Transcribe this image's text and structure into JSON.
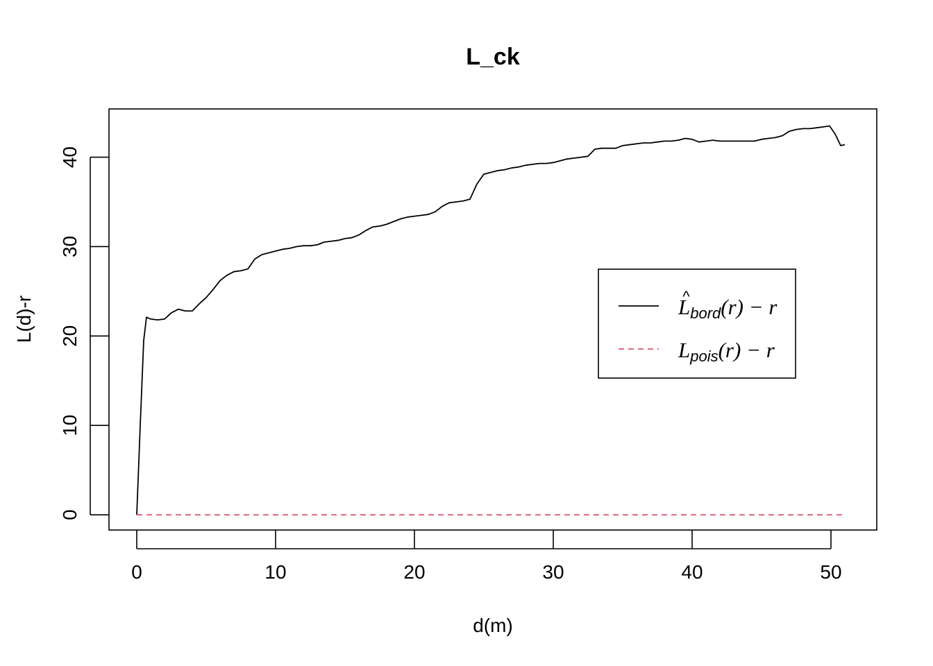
{
  "chart_data": {
    "type": "line",
    "title": "L_ck",
    "xlabel": "d(m)",
    "ylabel": "L(d)-r",
    "xlim": [
      -2,
      53.3
    ],
    "ylim": [
      -1.7,
      45.4
    ],
    "xticks": [
      0,
      10,
      20,
      30,
      40,
      50
    ],
    "yticks": [
      0,
      10,
      20,
      30,
      40
    ],
    "grid": false,
    "legend_position": "right",
    "legend": [
      {
        "main": "L",
        "hat": "^",
        "sub": "bord",
        "tail": "(r) − r",
        "color": "#000000",
        "style": "solid"
      },
      {
        "main": "L",
        "hat": "",
        "sub": "pois",
        "tail": "(r) − r",
        "color": "#DF536B",
        "style": "dashed"
      }
    ],
    "series": [
      {
        "color": "#000000",
        "style": "solid",
        "x": [
          0,
          0.25,
          0.5,
          0.7,
          1.0,
          1.5,
          2.0,
          2.5,
          3.0,
          3.5,
          4.0,
          4.5,
          5.0,
          5.5,
          6.0,
          6.5,
          7.0,
          7.5,
          8.0,
          8.5,
          9.0,
          9.5,
          10.0,
          10.5,
          11.0,
          11.5,
          12.0,
          12.5,
          13.0,
          13.5,
          14.0,
          14.5,
          15.0,
          15.5,
          16.0,
          16.5,
          17.0,
          17.5,
          18.0,
          18.5,
          19.0,
          19.5,
          20.0,
          20.5,
          21.0,
          21.5,
          22.0,
          22.5,
          23.0,
          23.5,
          24.0,
          24.5,
          25.0,
          25.5,
          26.0,
          26.5,
          27.0,
          27.5,
          28.0,
          28.5,
          29.0,
          29.5,
          30.0,
          30.5,
          31.0,
          31.5,
          32.0,
          32.5,
          33.0,
          33.5,
          34.0,
          34.5,
          35.0,
          35.5,
          36.0,
          36.5,
          37.0,
          37.5,
          38.0,
          38.5,
          39.0,
          39.5,
          40.0,
          40.5,
          41.0,
          41.5,
          42.0,
          42.5,
          43.0,
          43.5,
          44.0,
          44.5,
          45.0,
          45.5,
          46.0,
          46.5,
          47.0,
          47.5,
          48.0,
          48.5,
          49.0,
          49.5,
          49.9,
          50.3,
          50.7,
          51.0
        ],
        "y": [
          0,
          10,
          19.5,
          22.1,
          21.9,
          21.8,
          21.9,
          22.6,
          23.0,
          22.8,
          22.8,
          23.6,
          24.3,
          25.2,
          26.2,
          26.8,
          27.2,
          27.3,
          27.5,
          28.6,
          29.1,
          29.3,
          29.5,
          29.7,
          29.8,
          30.0,
          30.1,
          30.1,
          30.2,
          30.5,
          30.6,
          30.7,
          30.9,
          31.0,
          31.3,
          31.8,
          32.2,
          32.3,
          32.5,
          32.8,
          33.1,
          33.3,
          33.4,
          33.5,
          33.6,
          33.9,
          34.5,
          34.9,
          35.0,
          35.1,
          35.3,
          37.0,
          38.1,
          38.3,
          38.5,
          38.6,
          38.8,
          38.9,
          39.1,
          39.2,
          39.3,
          39.3,
          39.4,
          39.6,
          39.8,
          39.9,
          40.0,
          40.1,
          40.9,
          41.0,
          41.0,
          41.0,
          41.3,
          41.4,
          41.5,
          41.6,
          41.6,
          41.7,
          41.8,
          41.8,
          41.9,
          42.1,
          42.0,
          41.7,
          41.8,
          41.9,
          41.8,
          41.8,
          41.8,
          41.8,
          41.8,
          41.8,
          42.0,
          42.1,
          42.2,
          42.4,
          42.9,
          43.1,
          43.2,
          43.2,
          43.3,
          43.4,
          43.5,
          42.6,
          41.3,
          41.4
        ]
      },
      {
        "color": "#DF536B",
        "style": "dashed",
        "x": [
          0,
          51
        ],
        "y": [
          0,
          0
        ]
      }
    ]
  }
}
